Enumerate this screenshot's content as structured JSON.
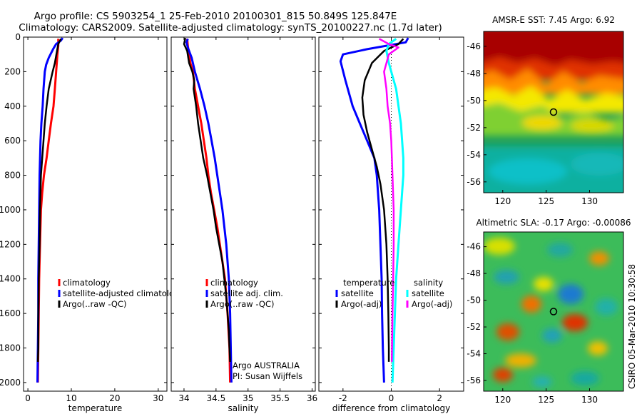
{
  "header": {
    "line1": "Argo profile: CS 5903254_1 25-Feb-2010 20100301_815 50.849S 125.847E",
    "line2": "Climatology: CARS2009. Satellite-adjusted climatology: synTS_20100227.nc (1.7d later)"
  },
  "side_label": "CSIRO 05-Mar-2010 10:30:58",
  "colors": {
    "red": "#ff0000",
    "blue": "#0000ff",
    "black": "#000000",
    "cyan": "#00ffff",
    "magenta": "#ff00ff"
  },
  "chart_data": [
    {
      "type": "line",
      "xlabel": "temperature",
      "ylabel": "",
      "xlim": [
        -1,
        32
      ],
      "ylim": [
        2050,
        0
      ],
      "x_ticks": [
        "0",
        "10",
        "20",
        "30"
      ],
      "x_tick_values": [
        0,
        10,
        20,
        30
      ],
      "y_ticks": [
        "0",
        "200",
        "400",
        "600",
        "800",
        "1000",
        "1200",
        "1400",
        "1600",
        "1800",
        "2000"
      ],
      "y_tick_values": [
        0,
        200,
        400,
        600,
        800,
        1000,
        1200,
        1400,
        1600,
        1800,
        2000
      ],
      "legend": {
        "position": "bottom-right",
        "entries": [
          "climatology",
          "satellite-adjusted climatolog",
          "Argo(..raw -QC)"
        ]
      },
      "series": [
        {
          "name": "climatology",
          "color": "red",
          "width": 3,
          "points": [
            [
              7.0,
              10
            ],
            [
              7.0,
              50
            ],
            [
              6.8,
              100
            ],
            [
              6.5,
              200
            ],
            [
              6.2,
              300
            ],
            [
              5.9,
              400
            ],
            [
              5.3,
              500
            ],
            [
              4.8,
              600
            ],
            [
              4.3,
              700
            ],
            [
              3.7,
              800
            ],
            [
              3.3,
              900
            ],
            [
              3.0,
              1000
            ],
            [
              2.8,
              1200
            ],
            [
              2.6,
              1400
            ],
            [
              2.5,
              1600
            ],
            [
              2.4,
              1800
            ],
            [
              2.3,
              2000
            ]
          ]
        },
        {
          "name": "satellite-adjusted climatolog",
          "color": "blue",
          "width": 3,
          "points": [
            [
              8.0,
              5
            ],
            [
              7.6,
              20
            ],
            [
              6.5,
              40
            ],
            [
              5.8,
              70
            ],
            [
              4.8,
              120
            ],
            [
              4.2,
              160
            ],
            [
              3.9,
              200
            ],
            [
              3.6,
              300
            ],
            [
              3.4,
              400
            ],
            [
              3.1,
              500
            ],
            [
              2.9,
              600
            ],
            [
              2.7,
              800
            ],
            [
              2.6,
              1000
            ],
            [
              2.5,
              1200
            ],
            [
              2.4,
              1400
            ],
            [
              2.4,
              1600
            ],
            [
              2.3,
              1800
            ],
            [
              2.2,
              2000
            ]
          ]
        },
        {
          "name": "Argo(..raw -QC)",
          "color": "black",
          "width": 2.5,
          "points": [
            [
              7.6,
              10
            ],
            [
              7.0,
              40
            ],
            [
              6.7,
              80
            ],
            [
              6.2,
              150
            ],
            [
              5.7,
              200
            ],
            [
              4.8,
              300
            ],
            [
              4.3,
              400
            ],
            [
              3.9,
              500
            ],
            [
              3.6,
              600
            ],
            [
              3.3,
              700
            ],
            [
              3.0,
              800
            ],
            [
              2.8,
              1000
            ],
            [
              2.7,
              1200
            ],
            [
              2.5,
              1400
            ],
            [
              2.4,
              1600
            ],
            [
              2.4,
              1800
            ],
            [
              2.3,
              1880
            ]
          ]
        }
      ]
    },
    {
      "type": "line",
      "xlabel": "salinity",
      "ylabel": "",
      "xlim": [
        33.8,
        36.05
      ],
      "ylim": [
        2050,
        0
      ],
      "x_ticks": [
        "34",
        "34.5",
        "35",
        "35.5",
        "36"
      ],
      "x_tick_values": [
        34,
        34.5,
        35,
        35.5,
        36
      ],
      "annotation": [
        "Argo AUSTRALIA",
        "PI: Susan Wijffels"
      ],
      "legend": {
        "position": "bottom-right",
        "entries": [
          "climatology",
          "satellite adj. clim.",
          "Argo(..raw -QC)"
        ]
      },
      "series": [
        {
          "name": "climatology",
          "color": "red",
          "width": 3,
          "points": [
            [
              34.05,
              10
            ],
            [
              34.06,
              50
            ],
            [
              34.08,
              100
            ],
            [
              34.1,
              150
            ],
            [
              34.14,
              200
            ],
            [
              34.17,
              300
            ],
            [
              34.22,
              400
            ],
            [
              34.27,
              500
            ],
            [
              34.31,
              600
            ],
            [
              34.35,
              700
            ],
            [
              34.38,
              800
            ],
            [
              34.42,
              900
            ],
            [
              34.47,
              1000
            ],
            [
              34.52,
              1100
            ],
            [
              34.56,
              1200
            ],
            [
              34.6,
              1300
            ],
            [
              34.64,
              1400
            ],
            [
              34.68,
              1600
            ],
            [
              34.71,
              1800
            ],
            [
              34.72,
              2000
            ]
          ]
        },
        {
          "name": "satellite adj. clim.",
          "color": "blue",
          "width": 3,
          "points": [
            [
              34.06,
              10
            ],
            [
              34.04,
              30
            ],
            [
              34.06,
              60
            ],
            [
              34.12,
              120
            ],
            [
              34.17,
              200
            ],
            [
              34.25,
              300
            ],
            [
              34.32,
              400
            ],
            [
              34.38,
              500
            ],
            [
              34.43,
              600
            ],
            [
              34.48,
              700
            ],
            [
              34.52,
              800
            ],
            [
              34.56,
              900
            ],
            [
              34.6,
              1000
            ],
            [
              34.63,
              1100
            ],
            [
              34.66,
              1200
            ],
            [
              34.68,
              1300
            ],
            [
              34.7,
              1400
            ],
            [
              34.72,
              1600
            ],
            [
              34.73,
              1800
            ],
            [
              34.74,
              2000
            ]
          ]
        },
        {
          "name": "Argo(..raw -QC)",
          "color": "black",
          "width": 2.5,
          "points": [
            [
              34.02,
              5
            ],
            [
              34.0,
              40
            ],
            [
              34.05,
              80
            ],
            [
              34.08,
              150
            ],
            [
              34.13,
              200
            ],
            [
              34.16,
              250
            ],
            [
              34.15,
              300
            ],
            [
              34.19,
              400
            ],
            [
              34.22,
              500
            ],
            [
              34.26,
              600
            ],
            [
              34.3,
              700
            ],
            [
              34.36,
              800
            ],
            [
              34.41,
              900
            ],
            [
              34.46,
              1000
            ],
            [
              34.5,
              1100
            ],
            [
              34.55,
              1200
            ],
            [
              34.6,
              1300
            ],
            [
              34.63,
              1400
            ],
            [
              34.66,
              1500
            ],
            [
              34.68,
              1600
            ],
            [
              34.7,
              1700
            ],
            [
              34.71,
              1800
            ],
            [
              34.72,
              1880
            ]
          ]
        }
      ]
    },
    {
      "type": "line",
      "xlabel": "difference from climatology",
      "ylabel": "",
      "xlim": [
        -3,
        3
      ],
      "ylim": [
        2050,
        0
      ],
      "x_ticks": [
        "-2",
        "0",
        "2"
      ],
      "x_tick_values": [
        -2,
        0,
        2
      ],
      "reference_line": {
        "x": 0,
        "style": "dotted"
      },
      "legend": {
        "position": "bottom",
        "groups": [
          {
            "title": "temperature",
            "entries": [
              {
                "label": "satellite",
                "color": "blue"
              },
              {
                "label": "Argo(-adj)",
                "color": "black"
              }
            ]
          },
          {
            "title": "salinity",
            "entries": [
              {
                "label": "satellite",
                "color": "cyan"
              },
              {
                "label": "Argo(-adj)",
                "color": "magenta"
              }
            ]
          }
        ]
      },
      "series": [
        {
          "name": "temperature satellite",
          "color": "blue",
          "width": 3,
          "points": [
            [
              0.7,
              5
            ],
            [
              0.6,
              30
            ],
            [
              -1.0,
              70
            ],
            [
              -2.0,
              100
            ],
            [
              -2.1,
              140
            ],
            [
              -1.9,
              250
            ],
            [
              -1.6,
              400
            ],
            [
              -1.3,
              500
            ],
            [
              -1.0,
              600
            ],
            [
              -0.7,
              700
            ],
            [
              -0.6,
              800
            ],
            [
              -0.5,
              1000
            ],
            [
              -0.45,
              1200
            ],
            [
              -0.4,
              1400
            ],
            [
              -0.38,
              1600
            ],
            [
              -0.35,
              1800
            ],
            [
              -0.3,
              2000
            ]
          ]
        },
        {
          "name": "temperature Argo(-adj)",
          "color": "black",
          "width": 2.5,
          "points": [
            [
              0.5,
              10
            ],
            [
              0.3,
              40
            ],
            [
              -0.3,
              80
            ],
            [
              -0.8,
              150
            ],
            [
              -1.1,
              250
            ],
            [
              -1.2,
              350
            ],
            [
              -1.15,
              450
            ],
            [
              -1.0,
              550
            ],
            [
              -0.8,
              650
            ],
            [
              -0.6,
              750
            ],
            [
              -0.45,
              850
            ],
            [
              -0.3,
              1000
            ],
            [
              -0.2,
              1200
            ],
            [
              -0.15,
              1400
            ],
            [
              -0.12,
              1600
            ],
            [
              -0.1,
              1800
            ],
            [
              -0.1,
              1880
            ]
          ]
        },
        {
          "name": "salinity satellite",
          "color": "cyan",
          "width": 3,
          "points": [
            [
              0.2,
              10
            ],
            [
              -0.1,
              40
            ],
            [
              -0.2,
              80
            ],
            [
              -0.1,
              150
            ],
            [
              0.2,
              300
            ],
            [
              0.4,
              500
            ],
            [
              0.5,
              700
            ],
            [
              0.5,
              800
            ],
            [
              0.4,
              1000
            ],
            [
              0.3,
              1200
            ],
            [
              0.2,
              1400
            ],
            [
              0.15,
              1600
            ],
            [
              0.1,
              1800
            ],
            [
              0.05,
              2000
            ]
          ]
        },
        {
          "name": "salinity Argo(-adj)",
          "color": "magenta",
          "width": 2.5,
          "points": [
            [
              -0.5,
              10
            ],
            [
              -0.1,
              40
            ],
            [
              0.3,
              60
            ],
            [
              -0.1,
              100
            ],
            [
              -0.3,
              200
            ],
            [
              -0.2,
              300
            ],
            [
              -0.15,
              400
            ],
            [
              -0.05,
              500
            ],
            [
              0.0,
              600
            ],
            [
              0.05,
              800
            ],
            [
              0.1,
              1000
            ],
            [
              0.1,
              1200
            ],
            [
              0.08,
              1400
            ],
            [
              0.05,
              1600
            ],
            [
              0.03,
              1800
            ],
            [
              0.02,
              1880
            ]
          ]
        }
      ]
    },
    {
      "type": "heatmap",
      "title": "AMSR-E SST: 7.45 Argo: 6.92",
      "x_ticks": [
        "120",
        "125",
        "130"
      ],
      "x_tick_values": [
        120,
        125,
        130
      ],
      "y_ticks": [
        "-46",
        "-48",
        "-50",
        "-52",
        "-54",
        "-56"
      ],
      "y_tick_values": [
        -46,
        -48,
        -50,
        -52,
        -54,
        -56
      ],
      "xlim": [
        117.8,
        133.9
      ],
      "ylim": [
        -56.8,
        -44.9
      ],
      "marker": {
        "x": 125.847,
        "y": -50.849
      }
    },
    {
      "type": "heatmap",
      "title": "Altimetric SLA: -0.17 Argo: -0.00086",
      "x_ticks": [
        "120",
        "125",
        "130"
      ],
      "x_tick_values": [
        120,
        125,
        130
      ],
      "y_ticks": [
        "-46",
        "-48",
        "-50",
        "-52",
        "-54",
        "-56"
      ],
      "y_tick_values": [
        -46,
        -48,
        -50,
        -52,
        -54,
        -56
      ],
      "xlim": [
        117.8,
        133.9
      ],
      "ylim": [
        -56.8,
        -44.9
      ],
      "marker": {
        "x": 125.847,
        "y": -50.849
      }
    }
  ]
}
